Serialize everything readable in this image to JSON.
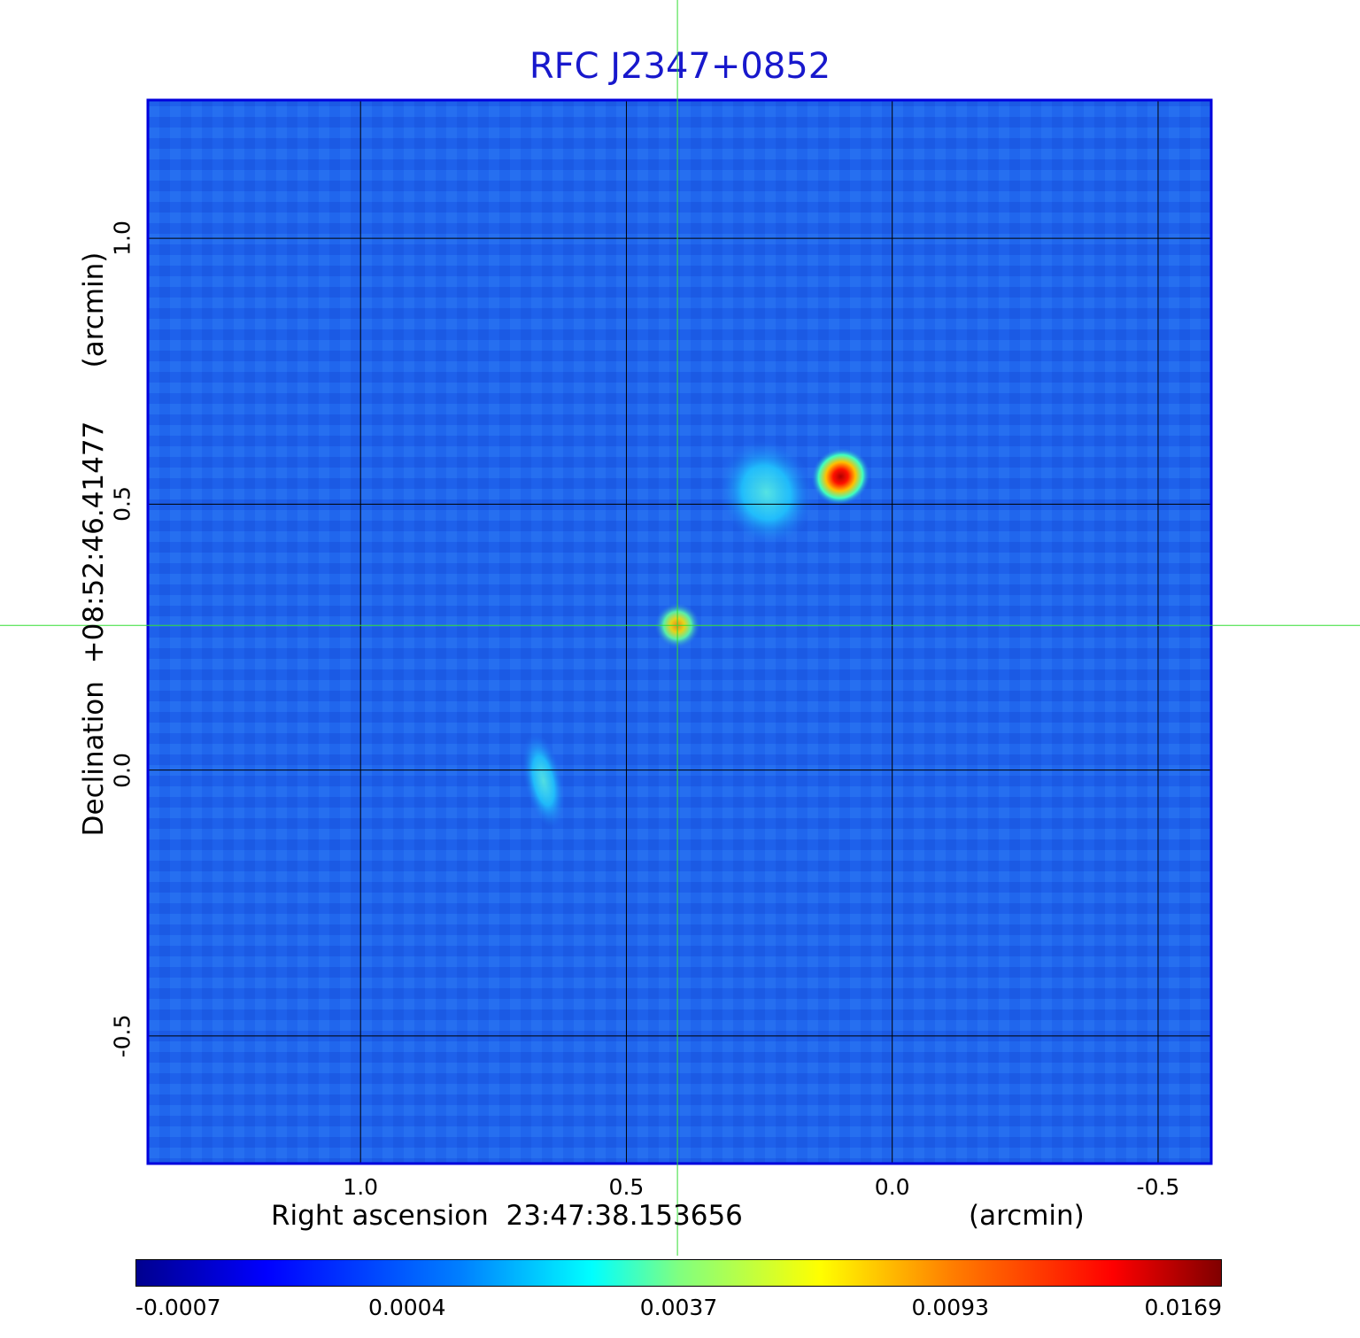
{
  "chart_data": {
    "type": "heatmap",
    "title": "RFC J2347+0852",
    "xlabel": "Right ascension  23:47:38.153656",
    "x_unit": "(arcmin)",
    "ylabel": "Declination  +08:52:46.41477",
    "y_unit": "(arcmin)",
    "xlim": [
      1.4,
      -0.6
    ],
    "ylim": [
      -0.74,
      1.26
    ],
    "x_ticks": [
      "1.0",
      "0.5",
      "0.0",
      "-0.5"
    ],
    "y_ticks": [
      "1.0",
      "0.5",
      "0.0",
      "-0.5"
    ],
    "grid": true,
    "crosshair": {
      "x": 0.404,
      "y": 0.272
    },
    "colorbar": {
      "ticks": [
        "-0.0007",
        "0.0004",
        "0.0037",
        "0.0093",
        "0.0169"
      ],
      "colormap": "jet"
    },
    "sources": [
      {
        "x": 0.097,
        "y": 0.552,
        "peak": 0.0169
      },
      {
        "x": 0.404,
        "y": 0.272,
        "peak": 0.0093
      },
      {
        "x": 0.237,
        "y": 0.522,
        "peak": 0.0037
      },
      {
        "x": 0.656,
        "y": -0.02,
        "peak": 0.0037
      }
    ],
    "colors": {
      "title": "#1818cc",
      "frame": "#0000dd",
      "crosshair": "#33dd33",
      "background": "#1e64ee"
    }
  }
}
